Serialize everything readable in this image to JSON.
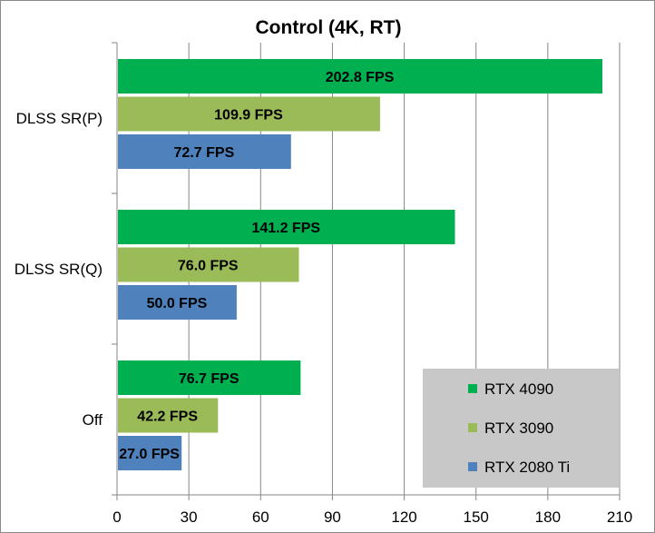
{
  "chart_data": {
    "type": "bar",
    "orientation": "horizontal",
    "title": "Control (4K, RT)",
    "categories": [
      "DLSS SR(P)",
      "DLSS SR(Q)",
      "Off"
    ],
    "series": [
      {
        "name": "RTX 4090",
        "color": "#00B050",
        "values": [
          202.8,
          141.2,
          76.7
        ],
        "labels": [
          "202.8 FPS",
          "141.2 FPS",
          "76.7 FPS"
        ]
      },
      {
        "name": "RTX 3090",
        "color": "#9BBB59",
        "values": [
          109.9,
          76.0,
          42.2
        ],
        "labels": [
          "109.9 FPS",
          "76.0 FPS",
          "42.2 FPS"
        ]
      },
      {
        "name": "RTX 2080 Ti",
        "color": "#4F81BD",
        "values": [
          72.7,
          50.0,
          27.0
        ],
        "labels": [
          "72.7 FPS",
          "50.0 FPS",
          "27.0 FPS"
        ]
      }
    ],
    "xlim": [
      0,
      210
    ],
    "xticks": [
      "0",
      "30",
      "60",
      "90",
      "120",
      "150",
      "180",
      "210"
    ],
    "grid": true,
    "legend": {
      "position": "bottom-right",
      "background": "#C8C8C8"
    }
  }
}
